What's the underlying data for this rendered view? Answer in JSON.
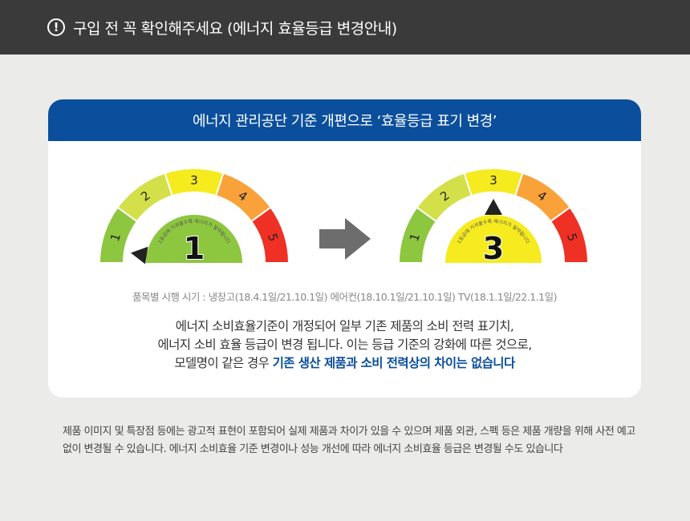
{
  "banner": {
    "icon": "exclamation-circle-icon",
    "title": "구입 전 꼭 확인해주세요 (에너지 효율등급 변경안내)"
  },
  "card": {
    "title": "에너지 관리공단 기준 개편으로 ‘효율등급 표기 변경’",
    "gauge_caption": "1등급에 가까울수록 에너지가 절약됩니다",
    "grade_labels": [
      "1",
      "2",
      "3",
      "4",
      "5"
    ],
    "grade_colors": [
      "#8dc63f",
      "#d4e04a",
      "#f5eb1e",
      "#f9a23a",
      "#ee3124"
    ],
    "before": {
      "grade": "1",
      "color": "#8dc63f"
    },
    "after": {
      "grade": "3",
      "color": "#f5eb1e"
    },
    "arrow_icon": "arrow-right-icon",
    "dates": "품목별 시행 시기 : 냉장고(18.4.1일/21.10.1일) 에어컨(18.10.1일/21.10.1일) TV(18.1.1일/22.1.1일)",
    "desc_line1": "에너지 소비효율기준이 개정되어 일부 기존 제품의 소비 전력 표기치,",
    "desc_line2": "에너지 소비 효율 등급이 변경 됩니다. 이는 등급 기준의 강화에 따른 것으로,",
    "desc_line3_prefix": "모델명이 같은 경우 ",
    "desc_line3_bold": "기존 생산 제품과 소비 전력상의 차이는 없습니다"
  },
  "note": "제품 이미지 및 특장점 등에는 광고적 표현이 포함되어 실제 제품과 차이가 있을 수 있으며 제품 외관, 스펙 등은 제품 개량을 위해 사전 예고 없이 변경될 수 있습니다.  에너지 소비효율 기준 변경이나 성능 개선에 따라 에너지 소비효율 등급은 변경될 수도 있습니다"
}
